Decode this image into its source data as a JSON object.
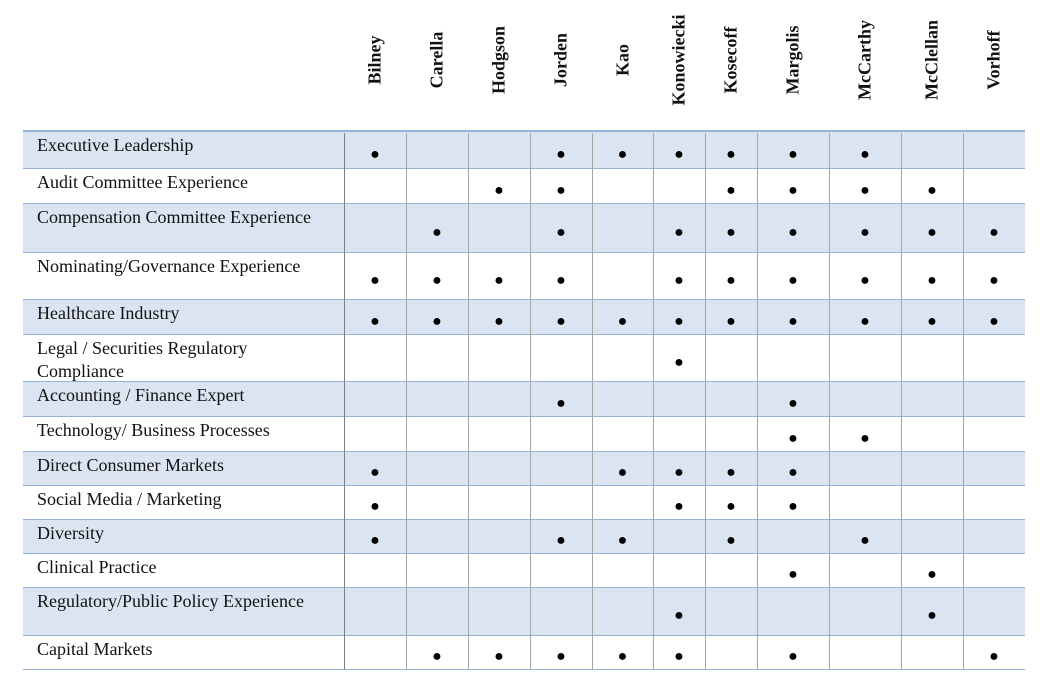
{
  "table": {
    "columns": [
      "Bilney",
      "Carella",
      "Hodgson",
      "Jorden",
      "Kao",
      "Konowiecki",
      "Kosecoff",
      "Margolis",
      "McCarthy",
      "McClellan",
      "Vorhoff"
    ],
    "rows": [
      {
        "label": "Executive Leadership",
        "cells": [
          "●",
          null,
          null,
          "●",
          "●",
          "●",
          "●",
          "●",
          "●",
          null,
          null
        ]
      },
      {
        "label": "Audit Committee Experience",
        "cells": [
          null,
          null,
          "●",
          "●",
          null,
          null,
          "●",
          "●",
          "●",
          "●",
          null
        ]
      },
      {
        "label": "Compensation Committee Experience",
        "cells": [
          null,
          "●",
          null,
          "●",
          null,
          "●",
          "●",
          "●",
          "●",
          "●",
          "●"
        ]
      },
      {
        "label": "Nominating/Governance Experience",
        "cells": [
          "●",
          "●",
          "●",
          "●",
          null,
          "●",
          "●",
          "●",
          "●",
          "●",
          "●"
        ]
      },
      {
        "label": "Healthcare Industry",
        "cells": [
          "●",
          "●",
          "●",
          "●",
          "●",
          "●",
          "●",
          "●",
          "●",
          "●",
          "●"
        ]
      },
      {
        "label": "Legal / Securities Regulatory Compliance",
        "cells": [
          null,
          null,
          null,
          null,
          null,
          "●",
          null,
          null,
          null,
          null,
          null
        ]
      },
      {
        "label": "Accounting / Finance Expert",
        "cells": [
          null,
          null,
          null,
          "●",
          null,
          null,
          null,
          "●",
          null,
          null,
          null
        ]
      },
      {
        "label": "Technology/ Business Processes",
        "cells": [
          null,
          null,
          null,
          null,
          null,
          null,
          null,
          "●",
          "●",
          null,
          null
        ]
      },
      {
        "label": "Direct Consumer Markets",
        "cells": [
          "●",
          null,
          null,
          null,
          "●",
          "●",
          "●",
          "●",
          null,
          null,
          null
        ]
      },
      {
        "label": "Social Media / Marketing",
        "cells": [
          "●",
          null,
          null,
          null,
          null,
          "●",
          "●",
          "●",
          null,
          null,
          null
        ]
      },
      {
        "label": "Diversity",
        "cells": [
          "●",
          null,
          null,
          "●",
          "●",
          null,
          "●",
          null,
          "●",
          null,
          null
        ]
      },
      {
        "label": "Clinical Practice",
        "cells": [
          null,
          null,
          null,
          null,
          null,
          null,
          null,
          "●",
          null,
          "●",
          null
        ]
      },
      {
        "label": "Regulatory/Public Policy Experience",
        "cells": [
          null,
          null,
          null,
          null,
          null,
          "●",
          null,
          null,
          null,
          "●",
          null
        ]
      },
      {
        "label": "Capital Markets",
        "cells": [
          null,
          "●",
          "●",
          "●",
          "●",
          "●",
          null,
          "●",
          null,
          null,
          "●"
        ]
      }
    ]
  }
}
